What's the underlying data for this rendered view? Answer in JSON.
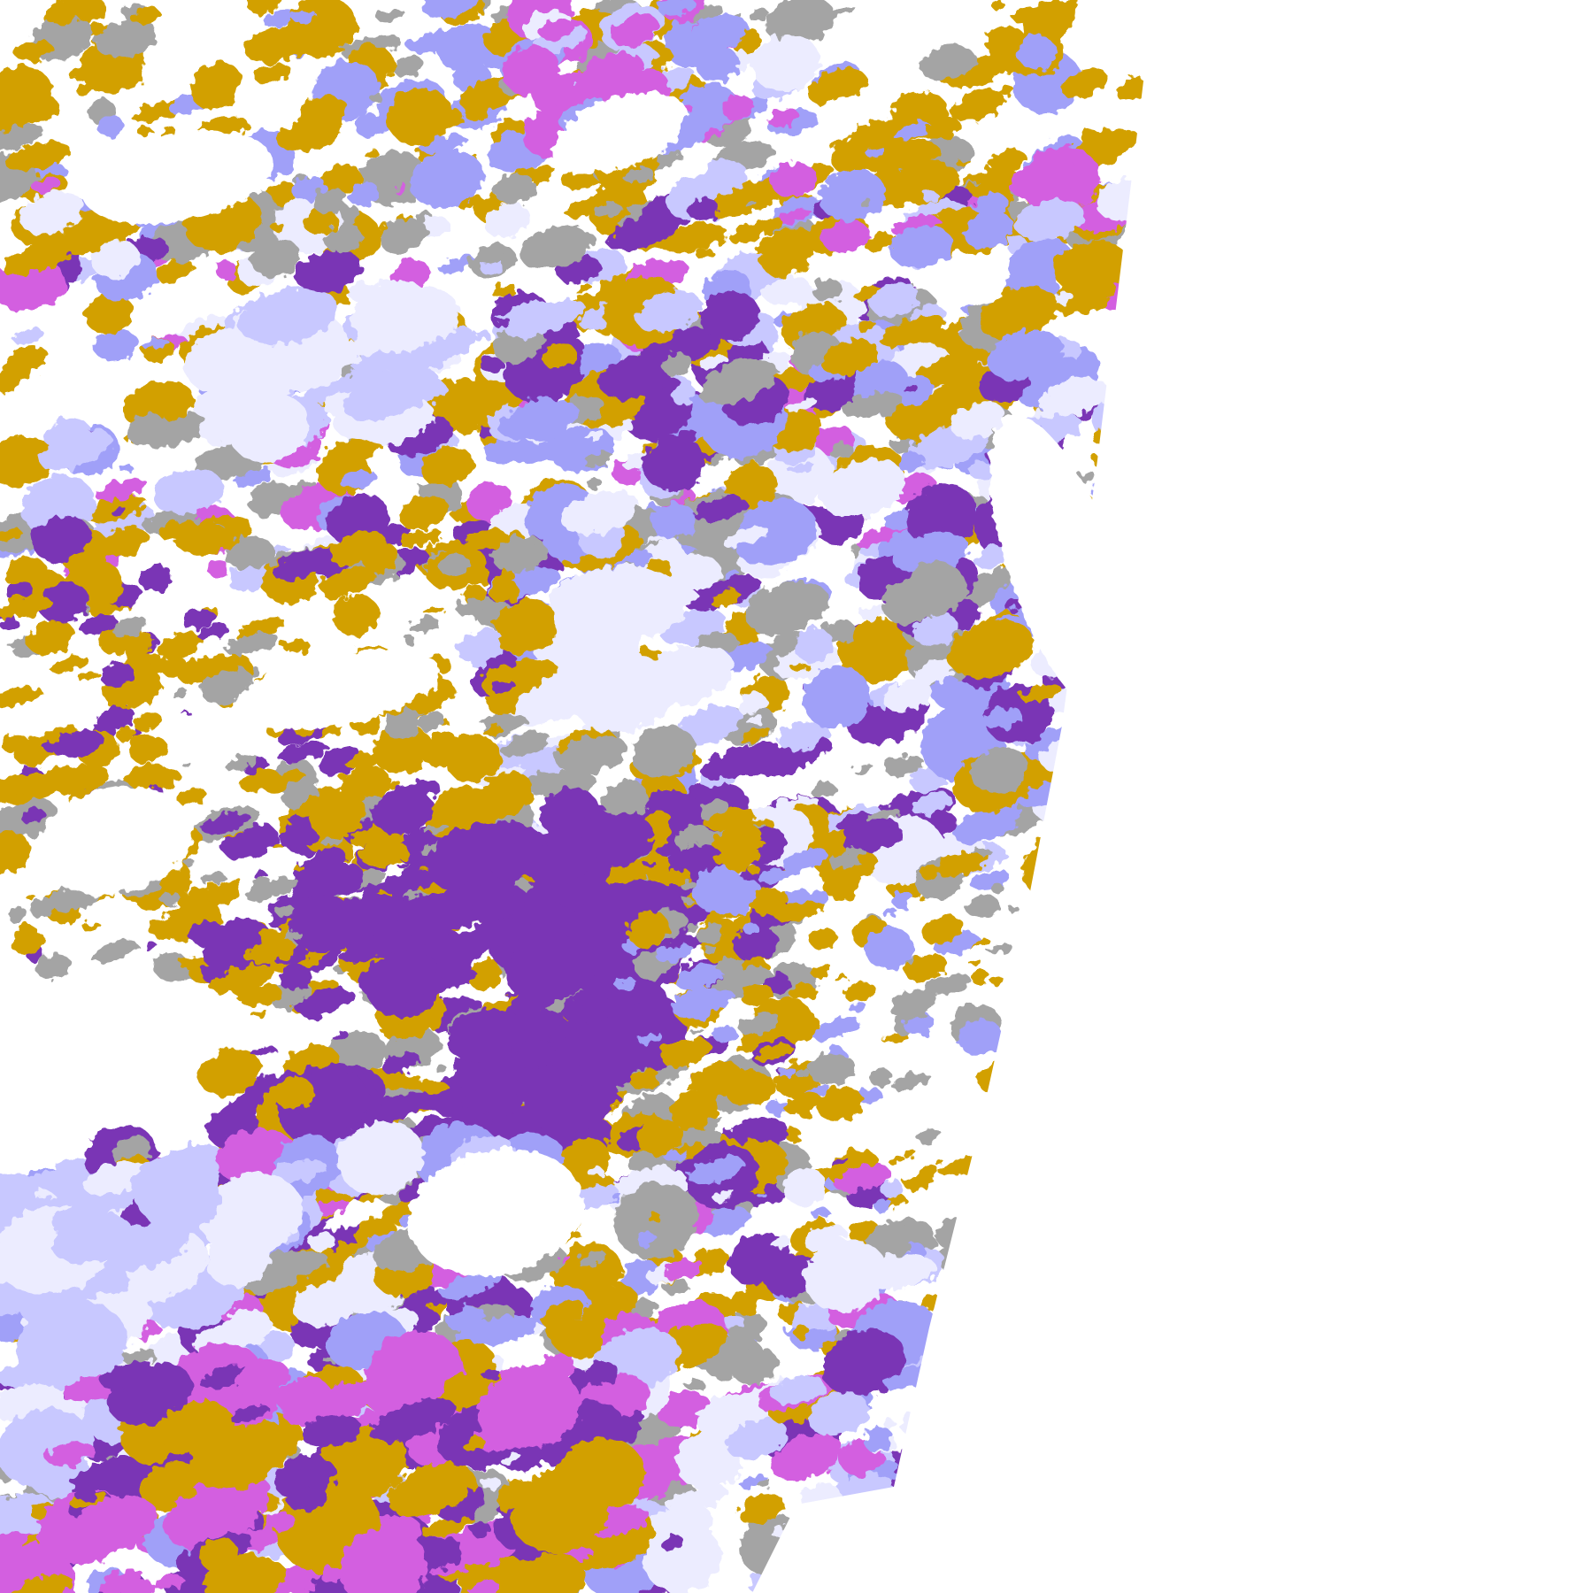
{
  "map": {
    "background": "#ffffff",
    "palette": {
      "gold": "#d2a000",
      "purple": "#7a35b5",
      "magenta": "#d35fe0",
      "lavender": "#ececff",
      "light-periwinkle": "#c8c8ff",
      "periwinkle": "#a0a0f8",
      "gray": "#a4a4a4"
    }
  }
}
